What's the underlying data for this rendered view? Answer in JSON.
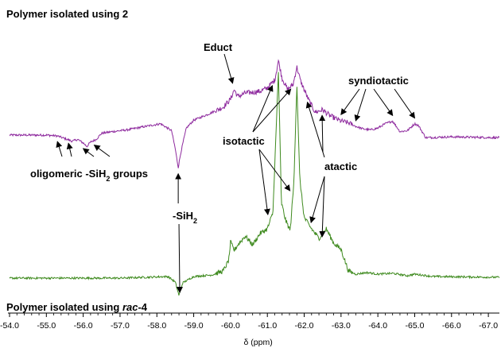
{
  "chart_data": {
    "type": "line",
    "xlabel": "δ (ppm)",
    "x_range": [
      -54.0,
      -67.3
    ],
    "x_reversed": true,
    "x_ticks": [
      "-54.0",
      "-55.0",
      "-56.0",
      "-57.0",
      "-58.0",
      "-59.0",
      "-60.0",
      "-61.0",
      "-62.0",
      "-63.0",
      "-64.0",
      "-65.0",
      "-66.0",
      "-67.0"
    ],
    "colors": {
      "top": "#8e2a9e",
      "bottom": "#3e8a1e",
      "text": "#000000"
    },
    "series": [
      {
        "name": "Polymer isolated using 2",
        "label_main": "Polymer isolated using 2",
        "label_italic": "",
        "color": "#8e2a9e",
        "baseline": 0,
        "noise": 0.25,
        "points": [
          [
            -54.0,
            0
          ],
          [
            -55.0,
            0
          ],
          [
            -55.3,
            -0.1
          ],
          [
            -55.5,
            -0.4
          ],
          [
            -55.7,
            -0.7
          ],
          [
            -55.85,
            -0.5
          ],
          [
            -56.0,
            -0.9
          ],
          [
            -56.1,
            -1.3
          ],
          [
            -56.2,
            -0.8
          ],
          [
            -56.35,
            -0.5
          ],
          [
            -56.5,
            0.2
          ],
          [
            -56.8,
            0.4
          ],
          [
            -57.2,
            0.6
          ],
          [
            -57.7,
            1.0
          ],
          [
            -58.1,
            1.3
          ],
          [
            -58.4,
            0.5
          ],
          [
            -58.5,
            -1.6
          ],
          [
            -58.58,
            -3.7
          ],
          [
            -58.66,
            -1.8
          ],
          [
            -58.8,
            0.8
          ],
          [
            -59.0,
            1.7
          ],
          [
            -59.4,
            2.4
          ],
          [
            -59.8,
            3.2
          ],
          [
            -60.0,
            4.1
          ],
          [
            -60.1,
            5.2
          ],
          [
            -60.2,
            4.4
          ],
          [
            -60.4,
            4.8
          ],
          [
            -60.6,
            4.9
          ],
          [
            -60.8,
            5.0
          ],
          [
            -61.0,
            5.4
          ],
          [
            -61.2,
            6.3
          ],
          [
            -61.3,
            8.5
          ],
          [
            -61.4,
            6.5
          ],
          [
            -61.55,
            5.2
          ],
          [
            -61.7,
            5.8
          ],
          [
            -61.8,
            7.8
          ],
          [
            -61.9,
            6.2
          ],
          [
            -62.1,
            4.2
          ],
          [
            -62.3,
            2.6
          ],
          [
            -62.5,
            2.9
          ],
          [
            -62.7,
            2.2
          ],
          [
            -63.0,
            1.6
          ],
          [
            -63.2,
            1.4
          ],
          [
            -63.4,
            1.0
          ],
          [
            -63.6,
            0.7
          ],
          [
            -63.8,
            0.6
          ],
          [
            -64.0,
            0.8
          ],
          [
            -64.2,
            1.3
          ],
          [
            -64.4,
            1.6
          ],
          [
            -64.6,
            0.4
          ],
          [
            -64.8,
            0.5
          ],
          [
            -65.0,
            1.3
          ],
          [
            -65.1,
            1.1
          ],
          [
            -65.3,
            -0.3
          ],
          [
            -66.0,
            -0.2
          ],
          [
            -67.3,
            -0.3
          ]
        ]
      },
      {
        "name": "Polymer isolated using rac-4",
        "label_main": "Polymer isolated using ",
        "label_italic": "rac",
        "label_suffix": "-4",
        "color": "#3e8a1e",
        "baseline": 0,
        "noise": 0.25,
        "points": [
          [
            -54.0,
            0
          ],
          [
            -55.5,
            0
          ],
          [
            -57.0,
            0
          ],
          [
            -58.3,
            0.2
          ],
          [
            -58.5,
            -0.5
          ],
          [
            -58.6,
            -2.2
          ],
          [
            -58.7,
            -0.6
          ],
          [
            -59.0,
            0.2
          ],
          [
            -59.5,
            0.4
          ],
          [
            -59.8,
            0.9
          ],
          [
            -59.95,
            2.2
          ],
          [
            -60.0,
            4.5
          ],
          [
            -60.1,
            3.5
          ],
          [
            -60.2,
            4.2
          ],
          [
            -60.4,
            5.3
          ],
          [
            -60.6,
            4.2
          ],
          [
            -60.8,
            5.6
          ],
          [
            -61.0,
            6.2
          ],
          [
            -61.15,
            8.2
          ],
          [
            -61.3,
            26.0
          ],
          [
            -61.38,
            9.5
          ],
          [
            -61.5,
            7.2
          ],
          [
            -61.62,
            6.0
          ],
          [
            -61.72,
            12.0
          ],
          [
            -61.8,
            24.5
          ],
          [
            -61.88,
            12.5
          ],
          [
            -62.0,
            7.6
          ],
          [
            -62.2,
            6.2
          ],
          [
            -62.4,
            5.0
          ],
          [
            -62.6,
            6.2
          ],
          [
            -62.8,
            4.4
          ],
          [
            -63.0,
            3.6
          ],
          [
            -63.2,
            0.9
          ],
          [
            -63.4,
            0.5
          ],
          [
            -63.7,
            0.7
          ],
          [
            -64.0,
            0.5
          ],
          [
            -64.4,
            0.6
          ],
          [
            -64.8,
            0.3
          ],
          [
            -65.0,
            0.5
          ],
          [
            -65.5,
            0.2
          ],
          [
            -67.3,
            0.1
          ]
        ]
      }
    ],
    "annotations": [
      {
        "text": "Educt",
        "target": "top",
        "arrows": [
          [
            -60.1,
            5.2
          ]
        ]
      },
      {
        "text": "syndiotactic",
        "target": "top",
        "arrows": [
          [
            -63.0,
            1.8
          ],
          [
            -63.4,
            1.1
          ],
          [
            -64.4,
            1.7
          ],
          [
            -65.0,
            1.4
          ]
        ]
      },
      {
        "text": "isotactic",
        "target": "mixed",
        "arrows_top": [
          [
            -61.2,
            6.2
          ],
          [
            -61.7,
            5.8
          ]
        ],
        "arrows_bottom": [
          [
            -61.1,
            8.0
          ],
          [
            -61.7,
            11.0
          ]
        ]
      },
      {
        "text": "atactic",
        "target": "mixed",
        "arrows_top": [
          [
            -62.0,
            4.3
          ],
          [
            -62.4,
            2.8
          ]
        ],
        "arrows_bottom": [
          [
            -62.1,
            7.0
          ],
          [
            -62.4,
            5.2
          ]
        ]
      },
      {
        "text_main": "oligomeric -SiH",
        "text_sub": "2",
        "text_suffix": " groups",
        "target": "top",
        "arrows": [
          [
            -55.3,
            -0.2
          ],
          [
            -55.6,
            -0.4
          ],
          [
            -56.0,
            -1.0
          ],
          [
            -56.3,
            -0.6
          ]
        ]
      },
      {
        "text_main": "-SiH",
        "text_sub": "2",
        "text_suffix": "",
        "target": "both",
        "arrow_up": [
          -58.58,
          -3.7
        ],
        "arrow_down": [
          -58.6,
          -2.2
        ]
      }
    ]
  }
}
